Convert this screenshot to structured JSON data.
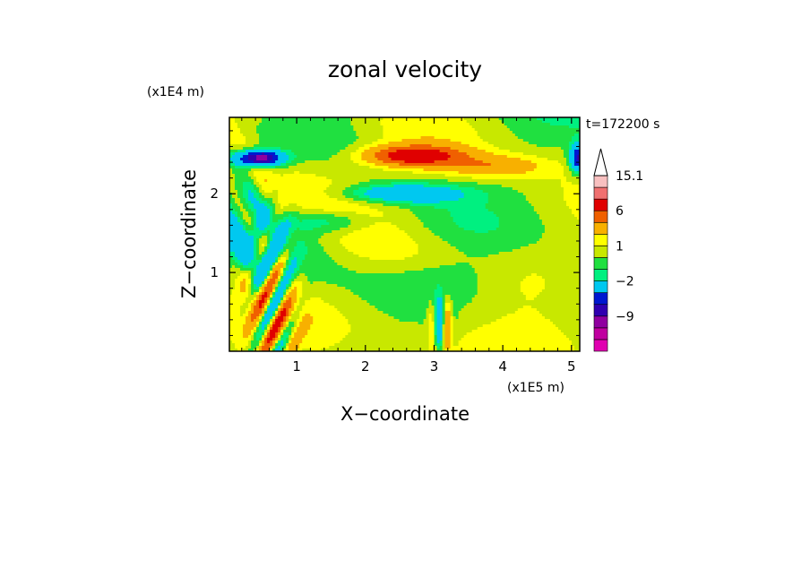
{
  "chart_data": {
    "type": "heatmap",
    "title": "zonal velocity",
    "xlabel": "X−coordinate",
    "ylabel": "Z−coordinate",
    "x_unit": "(x1E5 m)",
    "y_unit": "(x1E4 m)",
    "time_label": "t=172200 s",
    "xlim": [
      0.02,
      5.12
    ],
    "ylim": [
      0.0,
      2.97
    ],
    "x_ticks": [
      "1",
      "2",
      "3",
      "4",
      "5"
    ],
    "y_ticks": [
      "1",
      "2"
    ],
    "x_tick_values": [
      1,
      2,
      3,
      4,
      5
    ],
    "y_tick_values": [
      1,
      2
    ],
    "grid": false,
    "colorbar": {
      "labels": [
        "15.1",
        "6",
        "1",
        "−2",
        "−9"
      ],
      "label_values": [
        15.1,
        6,
        1,
        -2,
        -9
      ],
      "levels": [
        -16,
        -13,
        -11,
        -9,
        -7,
        -5,
        -2,
        -1,
        0,
        1,
        2,
        4,
        6,
        9,
        12,
        15.1
      ],
      "colors": [
        "#e000b0",
        "#c000a0",
        "#9000a0",
        "#3000b0",
        "#0018d0",
        "#00c8f0",
        "#00f080",
        "#20e040",
        "#c8e800",
        "#ffff00",
        "#f8b000",
        "#f06000",
        "#e00000",
        "#f07070",
        "#f8c0c0"
      ],
      "overflow_color": "#ffffff"
    }
  }
}
